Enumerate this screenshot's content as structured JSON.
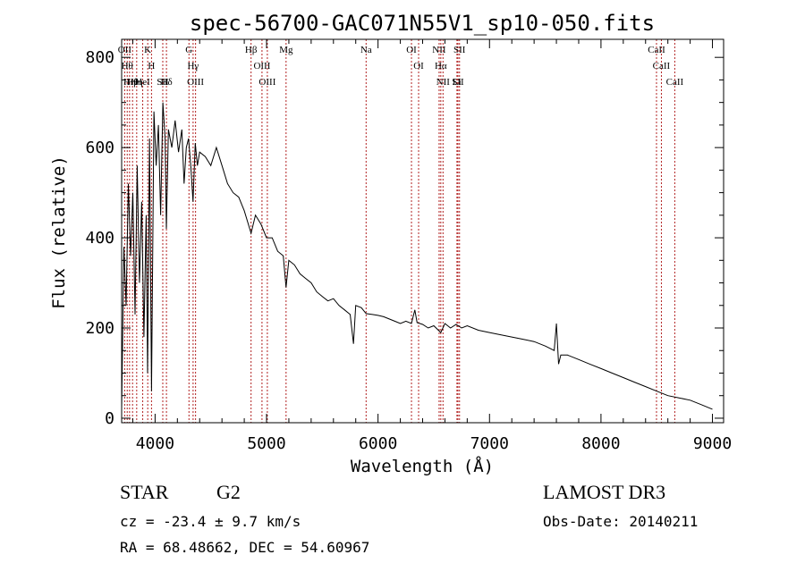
{
  "chart_data": {
    "type": "line",
    "title": "spec-56700-GAC071N55V1_sp10-050.fits",
    "xlabel": "Wavelength (Å)",
    "ylabel": "Flux (relative)",
    "xlim": [
      3700,
      9100
    ],
    "ylim": [
      -10,
      840
    ],
    "xticks": [
      4000,
      5000,
      6000,
      7000,
      8000,
      9000
    ],
    "xtick_labels": [
      "4000",
      "5000",
      "6000",
      "7000",
      "8000",
      "9000"
    ],
    "yticks": [
      0,
      200,
      400,
      600,
      800
    ],
    "ytick_labels": [
      "0",
      "200",
      "400",
      "600",
      "800"
    ],
    "series": [
      {
        "name": "spectrum",
        "x": [
          3700,
          3720,
          3740,
          3760,
          3780,
          3800,
          3820,
          3840,
          3860,
          3880,
          3900,
          3920,
          3933,
          3950,
          3968,
          3990,
          4010,
          4030,
          4050,
          4070,
          4090,
          4101,
          4120,
          4150,
          4180,
          4210,
          4240,
          4260,
          4280,
          4300,
          4320,
          4340,
          4360,
          4380,
          4400,
          4450,
          4500,
          4550,
          4600,
          4650,
          4700,
          4750,
          4800,
          4861,
          4900,
          4950,
          5000,
          5050,
          5100,
          5150,
          5175,
          5200,
          5250,
          5300,
          5350,
          5400,
          5450,
          5500,
          5550,
          5600,
          5650,
          5700,
          5750,
          5780,
          5800,
          5850,
          5893,
          5950,
          6000,
          6050,
          6100,
          6150,
          6200,
          6250,
          6300,
          6330,
          6350,
          6400,
          6450,
          6500,
          6563,
          6600,
          6650,
          6700,
          6750,
          6800,
          6900,
          7000,
          7100,
          7200,
          7300,
          7400,
          7500,
          7580,
          7600,
          7620,
          7640,
          7700,
          7800,
          7900,
          8000,
          8100,
          8200,
          8300,
          8400,
          8500,
          8600,
          8700,
          8800,
          8900,
          9000
        ],
        "y": [
          20,
          380,
          250,
          520,
          360,
          500,
          230,
          560,
          300,
          480,
          180,
          450,
          100,
          620,
          60,
          680,
          560,
          650,
          450,
          700,
          620,
          420,
          640,
          600,
          660,
          590,
          640,
          520,
          600,
          620,
          560,
          480,
          610,
          560,
          590,
          580,
          560,
          600,
          560,
          520,
          500,
          490,
          460,
          410,
          450,
          430,
          400,
          400,
          370,
          360,
          290,
          350,
          340,
          320,
          310,
          300,
          280,
          270,
          260,
          265,
          250,
          240,
          230,
          165,
          250,
          245,
          232,
          230,
          228,
          225,
          220,
          215,
          210,
          215,
          210,
          240,
          212,
          208,
          200,
          205,
          190,
          210,
          200,
          208,
          200,
          205,
          195,
          190,
          185,
          180,
          175,
          170,
          160,
          150,
          210,
          120,
          140,
          140,
          130,
          120,
          110,
          100,
          90,
          80,
          70,
          60,
          50,
          45,
          40,
          30,
          20
        ]
      }
    ],
    "line_markers": [
      {
        "wl": 3727,
        "label": "OII"
      },
      {
        "wl": 3750,
        "label": "Hθ"
      },
      {
        "wl": 3771,
        "label": "Hη"
      },
      {
        "wl": 3798,
        "label": "Hθ"
      },
      {
        "wl": 3835,
        "label": "Hη"
      },
      {
        "wl": 3889,
        "label": "HeI"
      },
      {
        "wl": 3934,
        "label": "K"
      },
      {
        "wl": 3968,
        "label": "H"
      },
      {
        "wl": 4069,
        "label": "SII"
      },
      {
        "wl": 4102,
        "label": "Hδ"
      },
      {
        "wl": 4304,
        "label": "G"
      },
      {
        "wl": 4341,
        "label": "Hγ"
      },
      {
        "wl": 4363,
        "label": "OIII"
      },
      {
        "wl": 4861,
        "label": "Hβ"
      },
      {
        "wl": 4959,
        "label": "OIII"
      },
      {
        "wl": 5007,
        "label": "OIII"
      },
      {
        "wl": 5175,
        "label": "Mg"
      },
      {
        "wl": 5893,
        "label": "Na"
      },
      {
        "wl": 6300,
        "label": "OI"
      },
      {
        "wl": 6364,
        "label": "OI"
      },
      {
        "wl": 6548,
        "label": "NII"
      },
      {
        "wl": 6563,
        "label": "Hα"
      },
      {
        "wl": 6583,
        "label": "NII"
      },
      {
        "wl": 6708,
        "label": "Li"
      },
      {
        "wl": 6717,
        "label": "SII"
      },
      {
        "wl": 6731,
        "label": "SII"
      },
      {
        "wl": 8498,
        "label": "CaII"
      },
      {
        "wl": 8542,
        "label": "CaII"
      },
      {
        "wl": 8662,
        "label": "CaII"
      }
    ]
  },
  "info": {
    "class_label": "STAR",
    "subclass": "G2",
    "redshift": "cz = -23.4 ± 9.7 km/s",
    "coords": "RA =  68.48662, DEC =  54.60967",
    "survey": "LAMOST DR3",
    "obs_date": "Obs-Date: 20140211"
  }
}
